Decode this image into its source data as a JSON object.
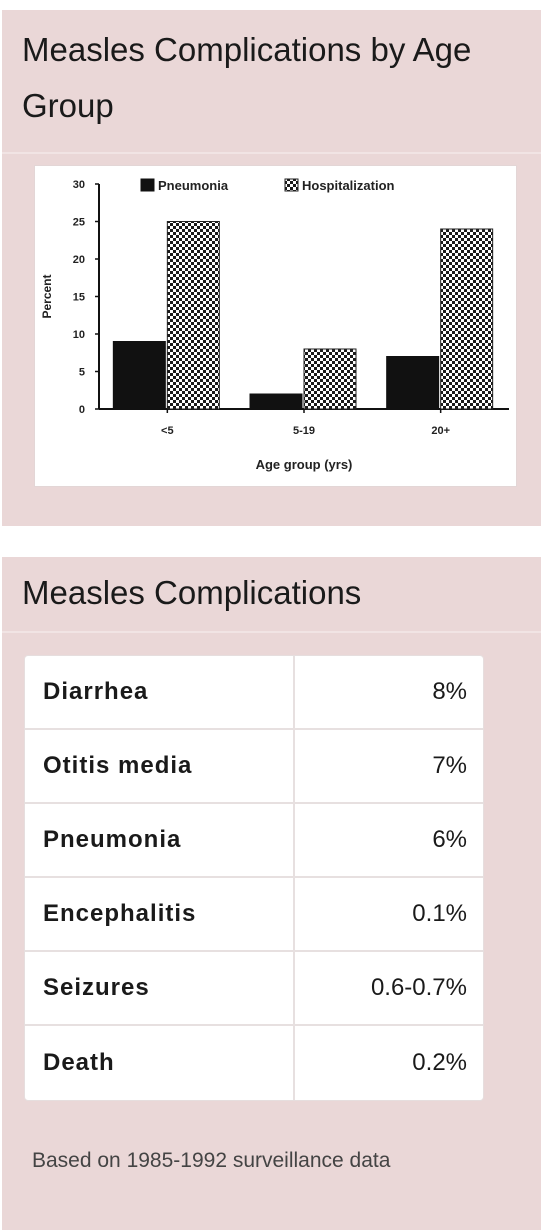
{
  "chart_card": {
    "title": "Measles Complications by Age Group"
  },
  "chart_data": {
    "type": "bar",
    "categories": [
      "<5",
      "5-19",
      "20+"
    ],
    "series": [
      {
        "name": "Pneumonia",
        "values": [
          9,
          2,
          7
        ],
        "color": "#111111",
        "pattern": "solid"
      },
      {
        "name": "Hospitalization",
        "values": [
          25,
          8,
          24
        ],
        "color": "#222222",
        "pattern": "checkered"
      }
    ],
    "xlabel": "Age group (yrs)",
    "ylabel": "Percent",
    "ylim": [
      0,
      30
    ],
    "yticks": [
      0,
      5,
      10,
      15,
      20,
      25,
      30
    ],
    "grid": false,
    "legend": "top"
  },
  "table_card": {
    "title": "Measles Complications",
    "rows": [
      {
        "name": "Diarrhea",
        "value": "8%"
      },
      {
        "name": "Otitis media",
        "value": "7%"
      },
      {
        "name": "Pneumonia",
        "value": "6%"
      },
      {
        "name": "Encephalitis",
        "value": "0.1%"
      },
      {
        "name": "Seizures",
        "value": "0.6-0.7%"
      },
      {
        "name": "Death",
        "value": "0.2%"
      }
    ],
    "footnote": "Based on 1985-1992 surveillance data"
  }
}
